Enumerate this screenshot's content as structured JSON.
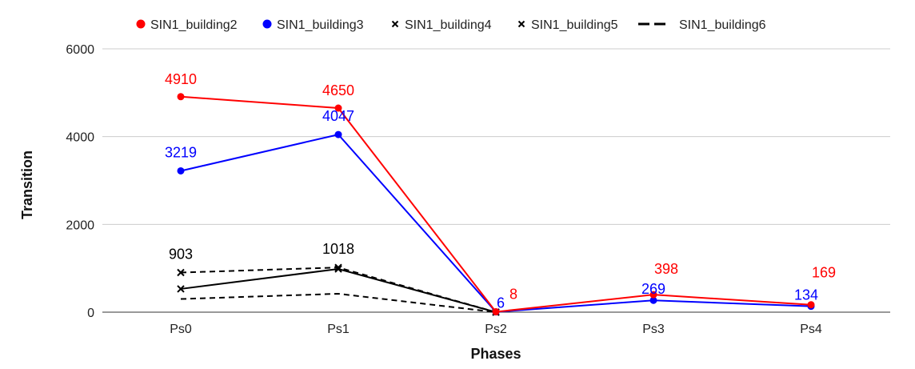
{
  "chart_data": {
    "type": "line",
    "title": "",
    "xlabel": "Phases",
    "ylabel": "Transition",
    "categories": [
      "Ps0",
      "Ps1",
      "Ps2",
      "Ps3",
      "Ps4"
    ],
    "ylim": [
      0,
      6000
    ],
    "yticks": [
      0,
      2000,
      4000,
      6000
    ],
    "grid": true,
    "legend_position": "top",
    "series": [
      {
        "name": "SIN1_building2",
        "values": [
          4910,
          4650,
          8,
          398,
          169
        ],
        "labels": [
          "4910",
          "4650",
          "8",
          "398",
          "169"
        ],
        "color": "#ff0000",
        "line_style": "solid",
        "marker": "circle"
      },
      {
        "name": "SIN1_building3",
        "values": [
          3219,
          4047,
          6,
          269,
          134
        ],
        "labels": [
          "3219",
          "4047",
          "6",
          "269",
          "134"
        ],
        "color": "#0000ff",
        "line_style": "solid",
        "marker": "circle"
      },
      {
        "name": "SIN1_building4",
        "values": [
          530,
          985,
          0,
          null,
          null
        ],
        "labels": [
          "",
          "",
          "",
          "",
          ""
        ],
        "color": "#000000",
        "line_style": "solid",
        "marker": "x"
      },
      {
        "name": "SIN1_building5",
        "values": [
          903,
          1018,
          0,
          null,
          null
        ],
        "labels": [
          "903",
          "1018",
          "",
          "",
          ""
        ],
        "color": "#000000",
        "line_style": "dashed",
        "marker": "x"
      },
      {
        "name": "SIN1_building6",
        "values": [
          300,
          420,
          0,
          null,
          null
        ],
        "labels": [
          "",
          "",
          "",
          "",
          ""
        ],
        "color": "#000000",
        "line_style": "dashed",
        "marker": "none"
      }
    ]
  }
}
